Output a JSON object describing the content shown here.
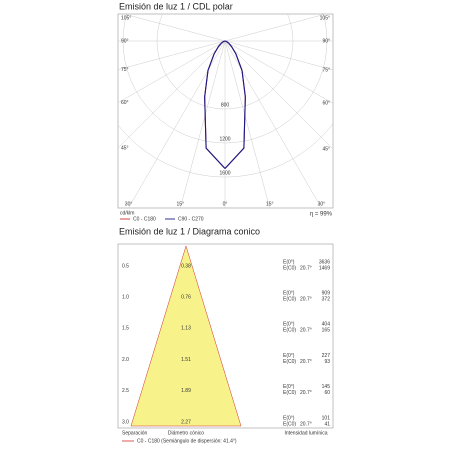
{
  "chart_data": {
    "type": "polar",
    "title": "Emisión de luz 1 / CDL polar",
    "angles": [
      0,
      10,
      20,
      30,
      40,
      50,
      60,
      70,
      80,
      90
    ],
    "series": [
      {
        "name": "C0 - C180",
        "color": "#d03030",
        "values": [
          1500,
          1280,
          700,
          400,
          200,
          100,
          50,
          20,
          5,
          0
        ]
      },
      {
        "name": "C90 - C270",
        "color": "#1a1a8c",
        "values": [
          1500,
          1280,
          700,
          400,
          200,
          100,
          50,
          20,
          5,
          0
        ]
      }
    ],
    "rlim": [
      0,
      2000
    ],
    "rticks": [
      800,
      1200,
      1600
    ],
    "angle_ticks": [
      {
        "value": 105,
        "label": "105°"
      },
      {
        "value": 90,
        "label": "90°"
      },
      {
        "value": 75,
        "label": "75°"
      },
      {
        "value": 60,
        "label": "60°"
      },
      {
        "value": 45,
        "label": "45°"
      },
      {
        "value": 30,
        "label": "30°"
      },
      {
        "value": 15,
        "label": "15°"
      },
      {
        "value": 0,
        "label": "0°"
      }
    ],
    "unit": "cd/klm",
    "efficiency": "η = 99%"
  },
  "cone": {
    "title": "Emisión de luz 1 / Diagrama conico",
    "rows": [
      {
        "height": "0.5",
        "diameter": "0.38",
        "e0": "3636",
        "ec0": "1469"
      },
      {
        "height": "1.0",
        "diameter": "0.76",
        "e0": "909",
        "ec0": "372"
      },
      {
        "height": "1.5",
        "diameter": "1.13",
        "e0": "404",
        "ec0": "165"
      },
      {
        "height": "2.0",
        "diameter": "1.51",
        "e0": "227",
        "ec0": "93"
      },
      {
        "height": "2.5",
        "diameter": "1.89",
        "e0": "145",
        "ec0": "60"
      },
      {
        "height": "3.0",
        "diameter": "2.27",
        "e0": "101",
        "ec0": "41"
      }
    ],
    "e0_label": "E(0°)",
    "ec0_label": "E(C0)",
    "angle": "20.7°",
    "footer": {
      "separation": "Separación",
      "diameter": "Diámetro cónico",
      "intensity": "Intensidad lumínica"
    },
    "legend": "C0 - C180 (Semiángulo de dispersión: 41.4°)"
  }
}
